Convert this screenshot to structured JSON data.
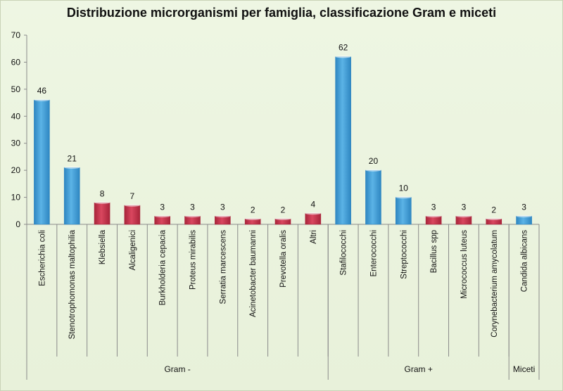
{
  "chart_data": {
    "type": "bar",
    "title": "Distribuzione microrganismi per famiglia, classificazione Gram e miceti",
    "ylim": [
      0,
      70
    ],
    "yticks": [
      0,
      10,
      20,
      30,
      40,
      50,
      60,
      70
    ],
    "grid": false,
    "categories": [
      "Escherichia coli",
      "Stenotrophomonas maltophilia",
      "Klebsiella",
      "Alcaligenici",
      "Burkholderia cepacia",
      "Proteus mirabilis",
      "Serratia marcescens",
      "Acinetobacter baumanni",
      "Prevotella oralis",
      "Altri",
      "Stafilococchi",
      "Enterococchi",
      "Streptococchi",
      "Bacillus spp",
      "Micrococcus luteus",
      "Corynebacterium amycolatum",
      "Candida albicans"
    ],
    "values": [
      46,
      21,
      8,
      7,
      3,
      3,
      3,
      2,
      2,
      4,
      62,
      20,
      10,
      3,
      3,
      2,
      3
    ],
    "bar_colors": [
      "blue",
      "blue",
      "red",
      "red",
      "red",
      "red",
      "red",
      "red",
      "red",
      "red",
      "blue",
      "blue",
      "blue",
      "red",
      "red",
      "red",
      "blue"
    ],
    "palette": {
      "blue": "#5bb3e6",
      "blue_dark": "#2e86c1",
      "red": "#d9475f",
      "red_dark": "#a8243a"
    },
    "groups": [
      {
        "label": "Gram -",
        "start": 0,
        "end": 9
      },
      {
        "label": "Gram +",
        "start": 10,
        "end": 15
      },
      {
        "label": "Miceti",
        "start": 16,
        "end": 16
      }
    ]
  }
}
